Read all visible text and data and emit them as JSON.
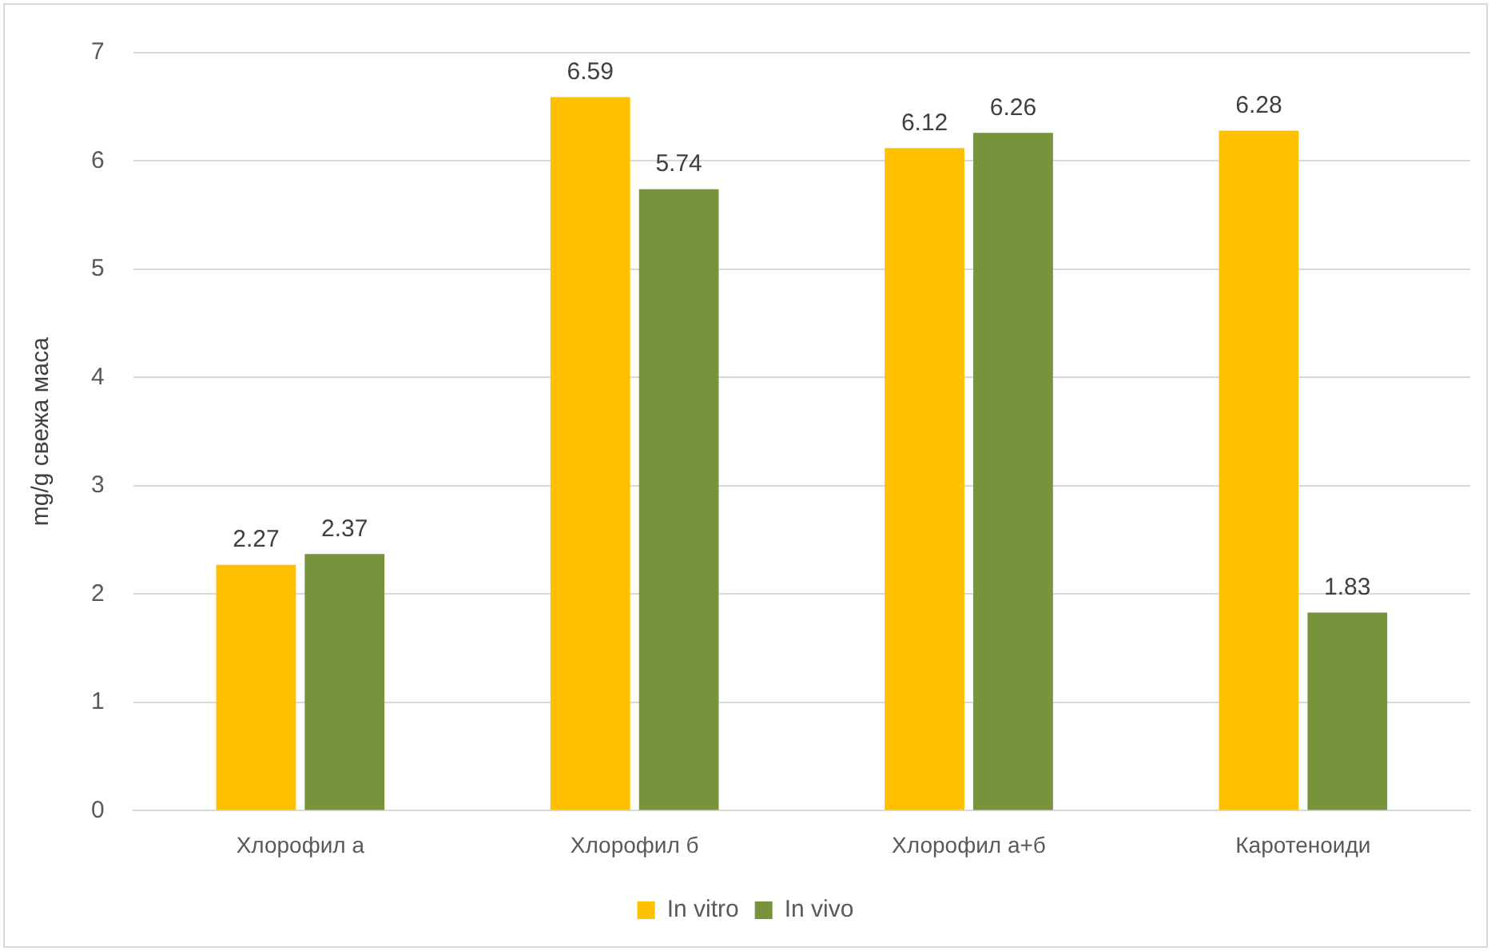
{
  "chart_data": {
    "type": "bar",
    "ylabel": "mg/g свежа маса",
    "categories": [
      "Хлорофил а",
      "Хлорофил б",
      "Хлорофил а+б",
      "Каротеноиди"
    ],
    "series": [
      {
        "name": "In vitro",
        "color": "#ffc000",
        "values": [
          2.27,
          6.59,
          6.12,
          6.28
        ]
      },
      {
        "name": "In vivo",
        "color": "#77933c",
        "values": [
          2.37,
          5.74,
          6.26,
          1.83
        ]
      }
    ],
    "ylim": [
      0,
      7
    ],
    "yticks": [
      0,
      1,
      2,
      3,
      4,
      5,
      6,
      7
    ],
    "grid": "y",
    "legend": "bottom",
    "data_labels": true
  }
}
